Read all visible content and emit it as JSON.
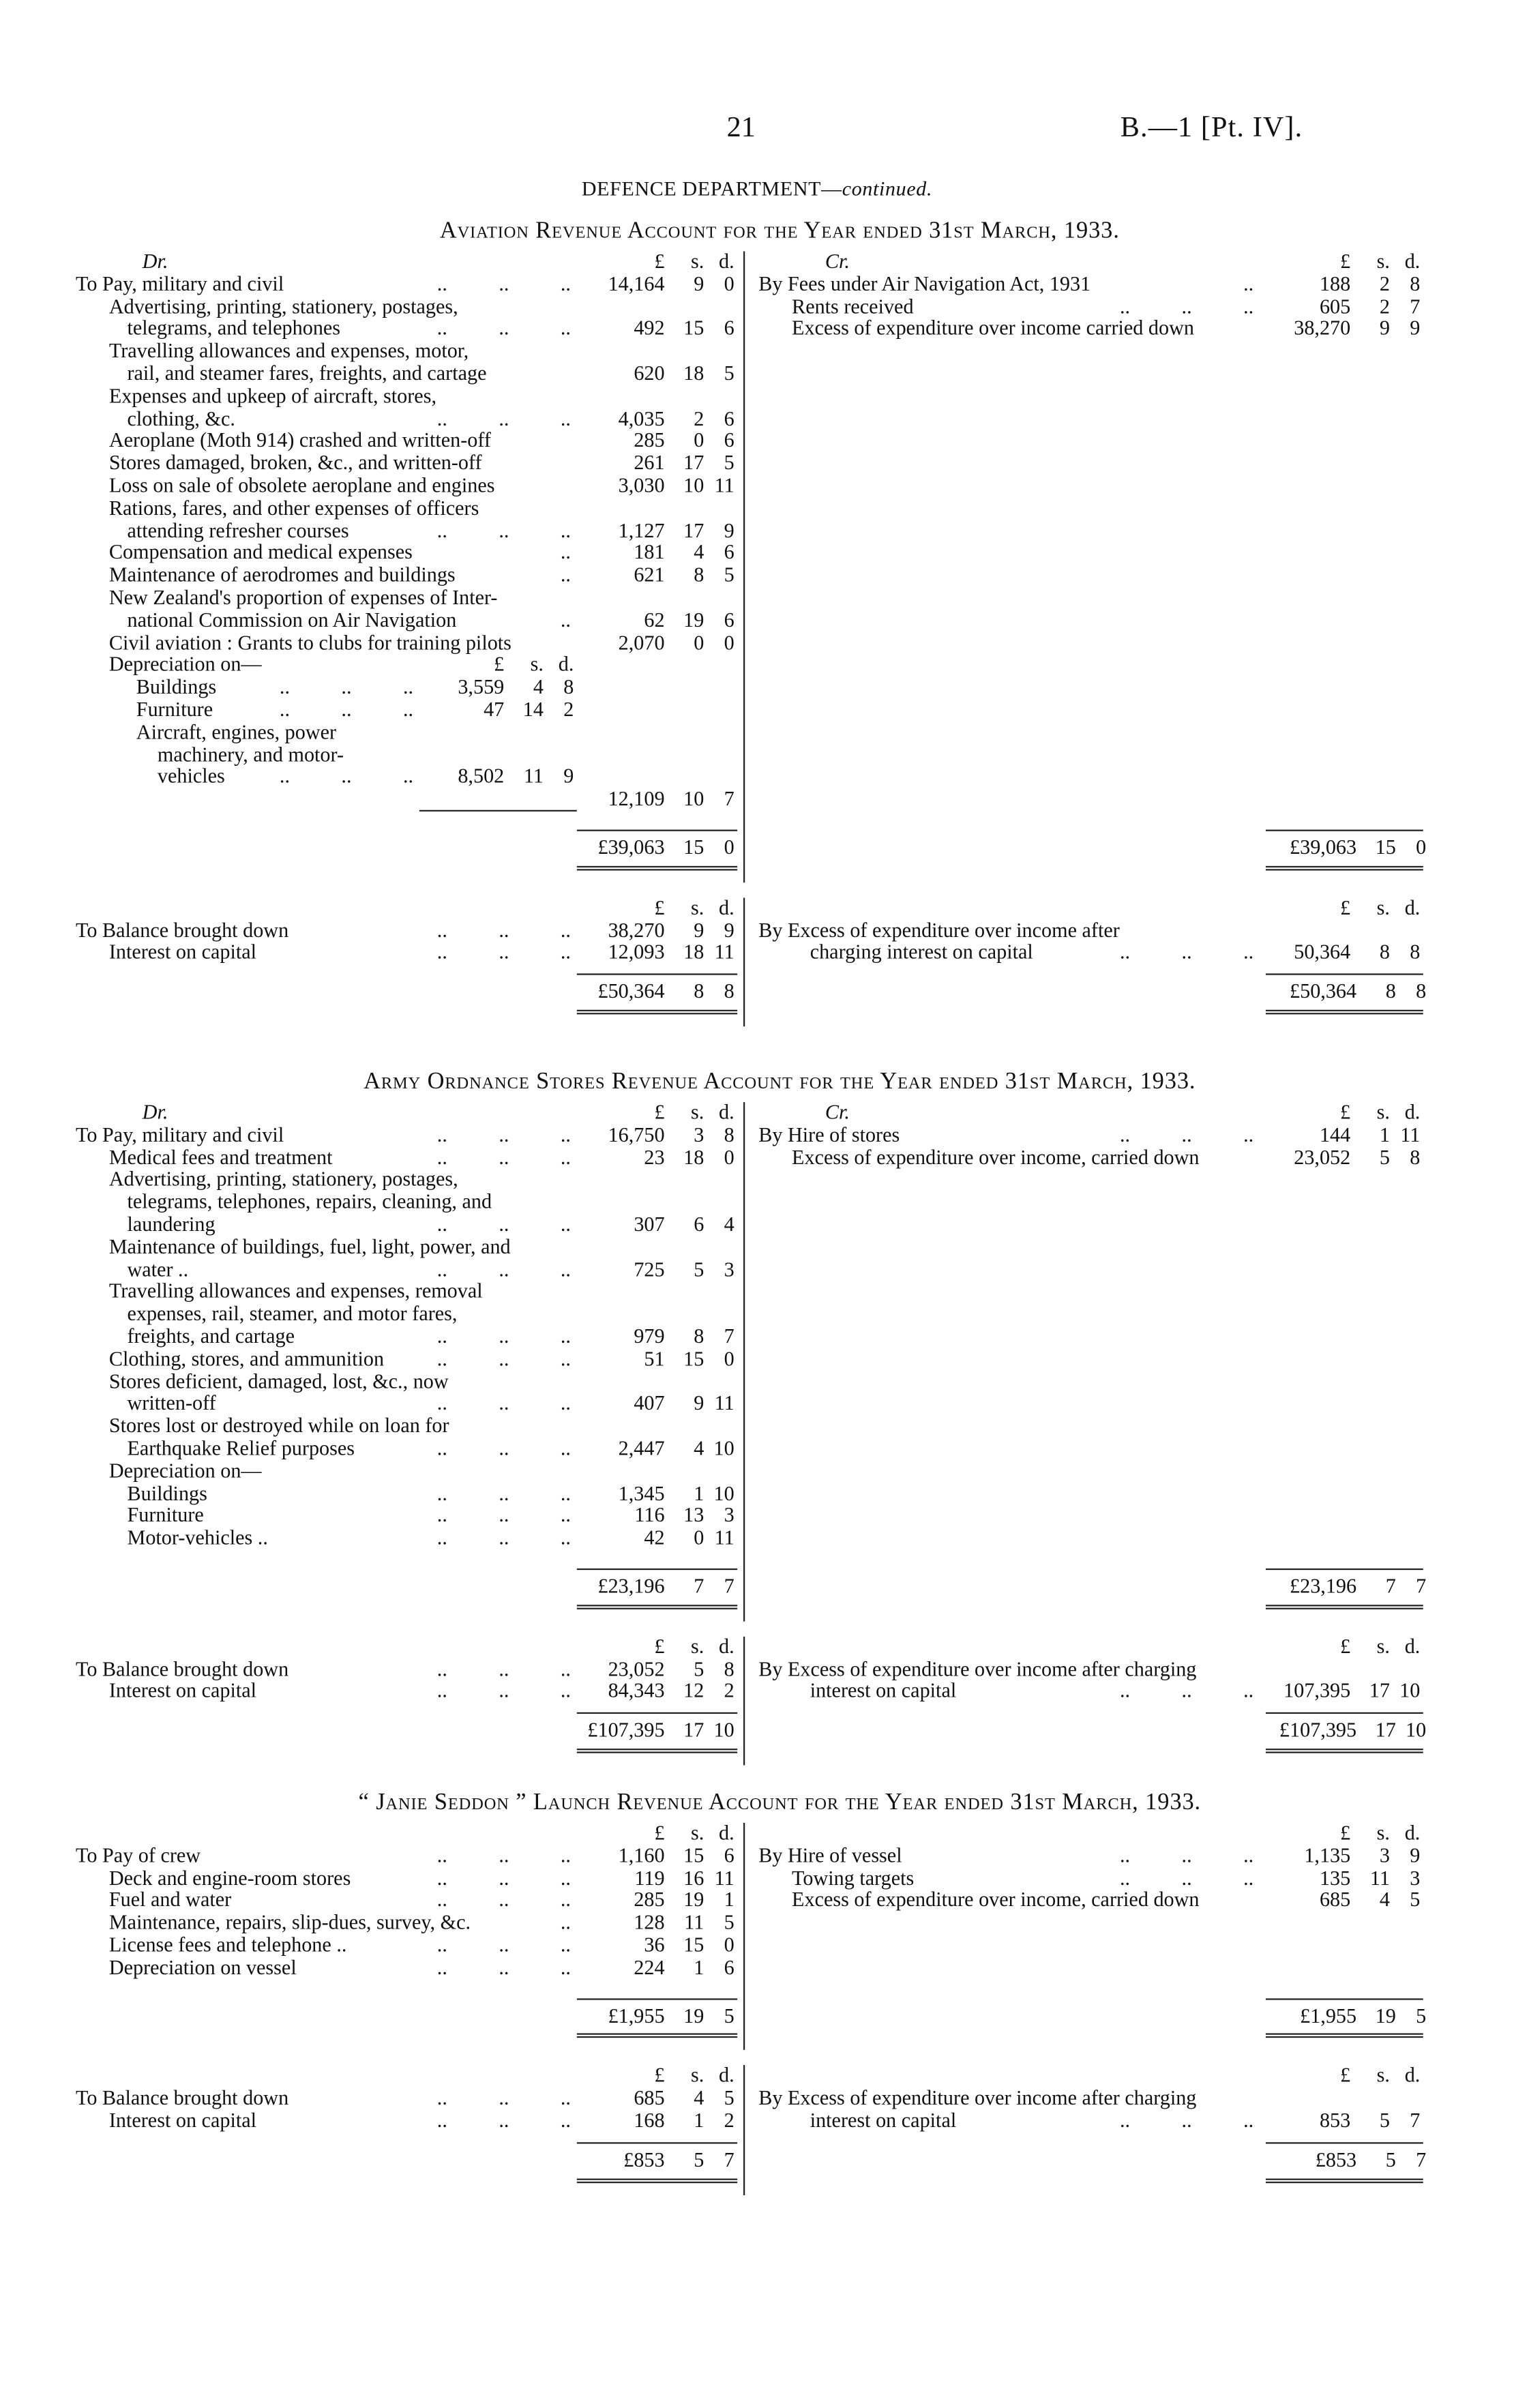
{
  "header": {
    "page_number": "21",
    "doc_ref": "B.—1 [Pt. IV].",
    "department": "DEFENCE DEPARTMENT—",
    "department_suffix": "continued."
  },
  "accounts": [
    {
      "title": "Aviation Revenue Account for the Year ended 31st March, 1933.",
      "part1": {
        "dr": [
          {
            "head": "Dr.",
            "cols": [
              "£",
              "s.",
              "d."
            ]
          },
          {
            "indent": 0,
            "lines": [
              "To Pay, military and civil"
            ],
            "leader": true,
            "amt": [
              "14,164",
              "9",
              "0"
            ]
          },
          {
            "indent": 1,
            "lines": [
              "Advertising, printing, stationery, postages,",
              "telegrams, and telephones"
            ],
            "leader": true,
            "amt": [
              "492",
              "15",
              "6"
            ]
          },
          {
            "indent": 1,
            "lines": [
              "Travelling allowances and expenses, motor,",
              "rail, and steamer fares, freights, and cartage"
            ],
            "amt": [
              "620",
              "18",
              "5"
            ]
          },
          {
            "indent": 1,
            "lines": [
              "Expenses and upkeep of aircraft, stores,",
              "clothing, &c."
            ],
            "leader": true,
            "amt": [
              "4,035",
              "2",
              "6"
            ]
          },
          {
            "indent": 1,
            "lines": [
              "Aeroplane (Moth 914) crashed and written-off"
            ],
            "amt": [
              "285",
              "0",
              "6"
            ]
          },
          {
            "indent": 1,
            "lines": [
              "Stores damaged, broken, &c., and written-off"
            ],
            "amt": [
              "261",
              "17",
              "5"
            ]
          },
          {
            "indent": 1,
            "lines": [
              "Loss on sale of obsolete aeroplane and engines"
            ],
            "amt": [
              "3,030",
              "10",
              "11"
            ]
          },
          {
            "indent": 1,
            "lines": [
              "Rations, fares, and other expenses of officers",
              "attending refresher courses"
            ],
            "leader": true,
            "amt": [
              "1,127",
              "17",
              "9"
            ]
          },
          {
            "indent": 1,
            "lines": [
              "Compensation and medical expenses"
            ],
            "leader": "short",
            "amt": [
              "181",
              "4",
              "6"
            ]
          },
          {
            "indent": 1,
            "lines": [
              "Maintenance of aerodromes and buildings"
            ],
            "leader": "short",
            "amt": [
              "621",
              "8",
              "5"
            ]
          },
          {
            "indent": 1,
            "lines": [
              "New Zealand's proportion of expenses of Inter-",
              "national Commission on Air Navigation"
            ],
            "leader": "short",
            "amt": [
              "62",
              "19",
              "6"
            ]
          },
          {
            "indent": 1,
            "lines": [
              "Civil aviation : Grants to clubs for training pilots"
            ],
            "amt": [
              "2,070",
              "0",
              "0"
            ]
          },
          {
            "indent": 1,
            "lines": [
              "Depreciation on—"
            ],
            "subhead": [
              "£",
              "s.",
              "d."
            ]
          },
          {
            "indent": 3,
            "lines": [
              "Buildings"
            ],
            "leader": true,
            "subamt": [
              "3,559",
              "4",
              "8"
            ]
          },
          {
            "indent": 3,
            "lines": [
              "Furniture"
            ],
            "leader": true,
            "subamt": [
              "47",
              "14",
              "2"
            ]
          },
          {
            "indent": 3,
            "lines": [
              "Aircraft, engines, power",
              "machinery, and motor-",
              "vehicles"
            ],
            "leader": true,
            "subamt": [
              "8,502",
              "11",
              "9"
            ]
          },
          {
            "rule": true,
            "amt": [
              "12,109",
              "10",
              "7"
            ]
          }
        ],
        "cr": [
          {
            "head": "Cr.",
            "cols": [
              "£",
              "s.",
              "d."
            ]
          },
          {
            "indent": 0,
            "lines": [
              "By Fees under Air Navigation Act, 1931"
            ],
            "leader": "short",
            "amt": [
              "188",
              "2",
              "8"
            ]
          },
          {
            "indent": 1,
            "lines": [
              "Rents received"
            ],
            "leader": true,
            "amt": [
              "605",
              "2",
              "7"
            ]
          },
          {
            "indent": 1,
            "lines": [
              "Excess of expenditure over income carried down"
            ],
            "amt": [
              "38,270",
              "9",
              "9"
            ]
          }
        ],
        "dr_total": [
          "£39,063",
          "15",
          "0"
        ],
        "cr_total": [
          "£39,063",
          "15",
          "0"
        ]
      },
      "part2": {
        "dr": [
          {
            "head": "",
            "cols": [
              "£",
              "s.",
              "d."
            ]
          },
          {
            "indent": 0,
            "lines": [
              "To Balance brought down"
            ],
            "leader": true,
            "amt": [
              "38,270",
              "9",
              "9"
            ]
          },
          {
            "indent": 1,
            "lines": [
              "Interest on capital"
            ],
            "leader": true,
            "amt": [
              "12,093",
              "18",
              "11"
            ]
          }
        ],
        "cr": [
          {
            "head": "",
            "cols": [
              "£",
              "s.",
              "d."
            ]
          },
          {
            "indent": 0,
            "lines": [
              "By Excess of expenditure over income after",
              "charging interest on capital"
            ],
            "leader": true,
            "amt": [
              "50,364",
              "8",
              "8"
            ]
          }
        ],
        "dr_total": [
          "£50,364",
          "8",
          "8"
        ],
        "cr_total": [
          "£50,364",
          "8",
          "8"
        ]
      }
    },
    {
      "title": "Army Ordnance Stores Revenue Account for the Year ended 31st March, 1933.",
      "part1": {
        "dr": [
          {
            "head": "Dr.",
            "cols": [
              "£",
              "s.",
              "d."
            ]
          },
          {
            "indent": 0,
            "lines": [
              "To Pay, military and civil"
            ],
            "leader": true,
            "amt": [
              "16,750",
              "3",
              "8"
            ]
          },
          {
            "indent": 1,
            "lines": [
              "Medical fees and treatment"
            ],
            "leader": true,
            "amt": [
              "23",
              "18",
              "0"
            ]
          },
          {
            "indent": 1,
            "lines": [
              "Advertising, printing, stationery, postages,",
              "telegrams, telephones, repairs, cleaning, and",
              "laundering"
            ],
            "leader": true,
            "amt": [
              "307",
              "6",
              "4"
            ]
          },
          {
            "indent": 1,
            "lines": [
              "Maintenance of buildings, fuel, light, power, and",
              "water .."
            ],
            "leader": true,
            "amt": [
              "725",
              "5",
              "3"
            ]
          },
          {
            "indent": 1,
            "lines": [
              "Travelling allowances and expenses, removal",
              "expenses, rail, steamer, and motor fares,",
              "freights, and cartage"
            ],
            "leader": true,
            "amt": [
              "979",
              "8",
              "7"
            ]
          },
          {
            "indent": 1,
            "lines": [
              "Clothing, stores, and ammunition"
            ],
            "leader": true,
            "amt": [
              "51",
              "15",
              "0"
            ]
          },
          {
            "indent": 1,
            "lines": [
              "Stores deficient, damaged, lost, &c., now",
              "written-off"
            ],
            "leader": true,
            "amt": [
              "407",
              "9",
              "11"
            ]
          },
          {
            "indent": 1,
            "lines": [
              "Stores lost or destroyed while on loan for",
              "Earthquake Relief purposes"
            ],
            "leader": true,
            "amt": [
              "2,447",
              "4",
              "10"
            ]
          },
          {
            "indent": 1,
            "lines": [
              "Depreciation on—"
            ]
          },
          {
            "indent": 2,
            "lines": [
              "Buildings"
            ],
            "leader": true,
            "amt": [
              "1,345",
              "1",
              "10"
            ]
          },
          {
            "indent": 2,
            "lines": [
              "Furniture"
            ],
            "leader": true,
            "amt": [
              "116",
              "13",
              "3"
            ]
          },
          {
            "indent": 2,
            "lines": [
              "Motor-vehicles .."
            ],
            "leader": true,
            "amt": [
              "42",
              "0",
              "11"
            ]
          }
        ],
        "cr": [
          {
            "head": "Cr.",
            "cols": [
              "£",
              "s.",
              "d."
            ]
          },
          {
            "indent": 0,
            "lines": [
              "By Hire of stores"
            ],
            "leader": true,
            "amt": [
              "144",
              "1",
              "11"
            ]
          },
          {
            "indent": 1,
            "lines": [
              "Excess of expenditure over income, carried down"
            ],
            "amt": [
              "23,052",
              "5",
              "8"
            ]
          }
        ],
        "dr_total": [
          "£23,196",
          "7",
          "7"
        ],
        "cr_total": [
          "£23,196",
          "7",
          "7"
        ]
      },
      "part2": {
        "dr": [
          {
            "head": "",
            "cols": [
              "£",
              "s.",
              "d."
            ]
          },
          {
            "indent": 0,
            "lines": [
              "To Balance brought down"
            ],
            "leader": true,
            "amt": [
              "23,052",
              "5",
              "8"
            ]
          },
          {
            "indent": 1,
            "lines": [
              "Interest on capital"
            ],
            "leader": true,
            "amt": [
              "84,343",
              "12",
              "2"
            ]
          }
        ],
        "cr": [
          {
            "head": "",
            "cols": [
              "£",
              "s.",
              "d."
            ]
          },
          {
            "indent": 0,
            "lines": [
              "By Excess of expenditure over income after charging",
              "interest on capital"
            ],
            "leader": true,
            "amt": [
              "107,395",
              "17",
              "10"
            ]
          }
        ],
        "dr_total": [
          "£107,395",
          "17",
          "10"
        ],
        "cr_total": [
          "£107,395",
          "17",
          "10"
        ]
      }
    },
    {
      "title": "“ Janie Seddon ” Launch Revenue Account for the Year ended 31st March, 1933.",
      "part1": {
        "dr": [
          {
            "head": "",
            "cols": [
              "£",
              "s.",
              "d."
            ]
          },
          {
            "indent": 0,
            "lines": [
              "To Pay of crew"
            ],
            "leader": true,
            "amt": [
              "1,160",
              "15",
              "6"
            ]
          },
          {
            "indent": 1,
            "lines": [
              "Deck and engine-room stores"
            ],
            "leader": true,
            "amt": [
              "119",
              "16",
              "11"
            ]
          },
          {
            "indent": 1,
            "lines": [
              "Fuel and water"
            ],
            "leader": true,
            "amt": [
              "285",
              "19",
              "1"
            ]
          },
          {
            "indent": 1,
            "lines": [
              "Maintenance, repairs, slip-dues, survey, &c."
            ],
            "leader": "short",
            "amt": [
              "128",
              "11",
              "5"
            ]
          },
          {
            "indent": 1,
            "lines": [
              "License fees and telephone .."
            ],
            "leader": true,
            "amt": [
              "36",
              "15",
              "0"
            ]
          },
          {
            "indent": 1,
            "lines": [
              "Depreciation on vessel"
            ],
            "leader": true,
            "amt": [
              "224",
              "1",
              "6"
            ]
          }
        ],
        "cr": [
          {
            "head": "",
            "cols": [
              "£",
              "s.",
              "d."
            ]
          },
          {
            "indent": 0,
            "lines": [
              "By Hire of vessel"
            ],
            "leader": true,
            "amt": [
              "1,135",
              "3",
              "9"
            ]
          },
          {
            "indent": 1,
            "lines": [
              "Towing targets"
            ],
            "leader": true,
            "amt": [
              "135",
              "11",
              "3"
            ]
          },
          {
            "indent": 1,
            "lines": [
              "Excess of expenditure over income, carried down"
            ],
            "amt": [
              "685",
              "4",
              "5"
            ]
          }
        ],
        "dr_total": [
          "£1,955",
          "19",
          "5"
        ],
        "cr_total": [
          "£1,955",
          "19",
          "5"
        ]
      },
      "part2": {
        "dr": [
          {
            "head": "",
            "cols": [
              "£",
              "s.",
              "d."
            ]
          },
          {
            "indent": 0,
            "lines": [
              "To Balance brought down"
            ],
            "leader": true,
            "amt": [
              "685",
              "4",
              "5"
            ]
          },
          {
            "indent": 1,
            "lines": [
              "Interest on capital"
            ],
            "leader": true,
            "amt": [
              "168",
              "1",
              "2"
            ]
          }
        ],
        "cr": [
          {
            "head": "",
            "cols": [
              "£",
              "s.",
              "d."
            ]
          },
          {
            "indent": 0,
            "lines": [
              "By Excess of expenditure over income after charging",
              "interest on capital"
            ],
            "leader": true,
            "amt": [
              "853",
              "5",
              "7"
            ]
          }
        ],
        "dr_total": [
          "£853",
          "5",
          "7"
        ],
        "cr_total": [
          "£853",
          "5",
          "7"
        ]
      }
    }
  ]
}
